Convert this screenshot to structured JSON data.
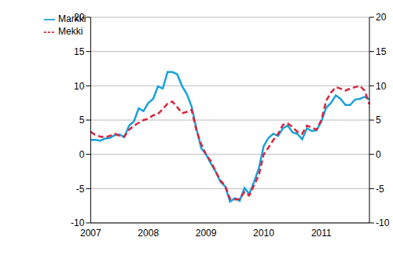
{
  "chart_data": {
    "type": "line",
    "categories": [
      "2007",
      null,
      null,
      null,
      null,
      null,
      null,
      null,
      null,
      null,
      null,
      null,
      "2008",
      null,
      null,
      null,
      null,
      null,
      null,
      null,
      null,
      null,
      null,
      null,
      "2009",
      null,
      null,
      null,
      null,
      null,
      null,
      null,
      null,
      null,
      null,
      null,
      "2010",
      null,
      null,
      null,
      null,
      null,
      null,
      null,
      null,
      null,
      null,
      null,
      "2011",
      null,
      null,
      null,
      null,
      null,
      null,
      null,
      null,
      null,
      null
    ],
    "series": [
      {
        "name": "Markki",
        "color": "#1ba1db",
        "line_style": "solid",
        "values": [
          2.1,
          2.1,
          2.0,
          2.3,
          2.4,
          2.8,
          2.9,
          2.5,
          4.2,
          4.8,
          6.7,
          6.3,
          7.5,
          8.1,
          9.9,
          9.6,
          12.0,
          12.0,
          11.7,
          10.0,
          8.8,
          7.0,
          3.8,
          0.9,
          0.0,
          -1.3,
          -2.5,
          -4.0,
          -4.7,
          -6.9,
          -6.4,
          -6.8,
          -4.9,
          -5.8,
          -4.0,
          -2.0,
          1.2,
          2.4,
          3.0,
          2.7,
          3.8,
          4.2,
          3.2,
          3.0,
          2.2,
          3.8,
          3.4,
          3.5,
          4.8,
          6.8,
          7.5,
          8.6,
          8.1,
          7.2,
          7.2,
          8.0,
          8.1,
          8.4,
          8.0
        ]
      },
      {
        "name": "Mekki",
        "color": "#d7263d",
        "line_style": "dashed",
        "values": [
          3.3,
          2.8,
          2.6,
          2.5,
          2.7,
          3.0,
          2.7,
          2.6,
          3.6,
          4.2,
          4.6,
          5.0,
          5.2,
          5.7,
          5.9,
          6.6,
          7.4,
          7.7,
          6.9,
          6.0,
          6.2,
          6.5,
          3.5,
          1.5,
          0.0,
          -1.0,
          -2.5,
          -3.8,
          -4.6,
          -6.5,
          -6.6,
          -6.5,
          -5.5,
          -6.0,
          -4.5,
          -3.0,
          0.0,
          1.0,
          2.1,
          3.0,
          4.3,
          4.5,
          4.0,
          3.3,
          3.0,
          4.2,
          3.9,
          3.6,
          5.0,
          7.8,
          9.0,
          9.8,
          9.6,
          9.3,
          9.6,
          9.8,
          10.0,
          9.3,
          7.3
        ]
      }
    ],
    "ylim": [
      -10,
      20
    ],
    "yticks": [
      -10,
      -5,
      0,
      5,
      10,
      15,
      20
    ],
    "grid": true,
    "legend": "upper left"
  }
}
